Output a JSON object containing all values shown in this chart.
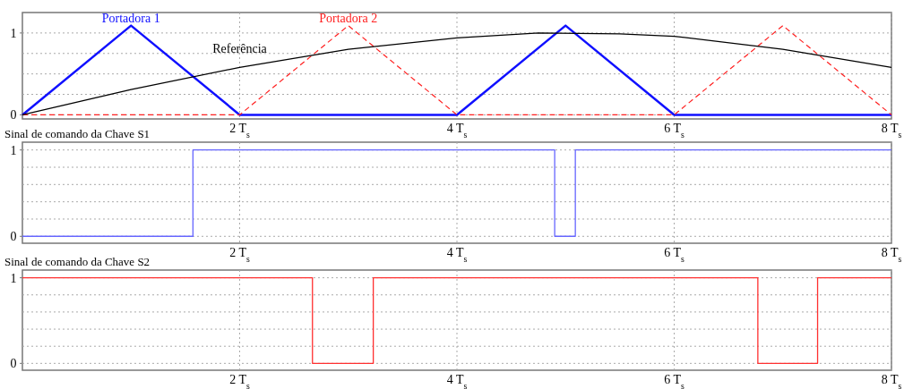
{
  "chart_data": [
    {
      "type": "line",
      "x": [
        0,
        1,
        2,
        3,
        4,
        4.75,
        5.5,
        6,
        7,
        8
      ],
      "xlim": [
        0,
        8
      ],
      "ylim": [
        -0.05,
        1.25
      ],
      "xticks": [
        {
          "value": 2,
          "label": "2 T$_{s}$"
        },
        {
          "value": 4,
          "label": "4 T$_{s}$"
        },
        {
          "value": 6,
          "label": "6 T$_{s}$"
        },
        {
          "value": 8,
          "label": "8 T$_{s}$"
        }
      ],
      "yticks": [
        {
          "value": 0,
          "label": "0"
        },
        {
          "value": 0.25,
          "label": null
        },
        {
          "value": 0.5,
          "label": null
        },
        {
          "value": 0.75,
          "label": null
        },
        {
          "value": 1,
          "label": "1"
        }
      ],
      "grid": true,
      "series": [
        {
          "name": "Portadora 1",
          "color": "#1010ff",
          "x": [
            0,
            1,
            2,
            4,
            5,
            6,
            8
          ],
          "values": [
            0,
            1.09,
            0,
            0,
            1.09,
            0,
            0
          ]
        },
        {
          "name": "Portadora 2",
          "color": "#ff2020",
          "line_style": "dashed",
          "x": [
            0,
            2,
            3,
            4,
            6,
            7,
            8
          ],
          "values": [
            0,
            0,
            1.09,
            0,
            0,
            1.09,
            0
          ]
        },
        {
          "name": "Referência",
          "color": "#000000",
          "values": [
            0,
            0.31,
            0.58,
            0.8,
            0.94,
            1.0,
            0.99,
            0.96,
            0.8,
            0.58
          ]
        }
      ]
    },
    {
      "type": "step",
      "title": "Sinal de comando da Chave S1",
      "xlim": [
        0,
        8
      ],
      "ylim": [
        -0.08,
        1.09
      ],
      "xticks": [
        {
          "value": 2,
          "label": "2 T$_{s}$"
        },
        {
          "value": 4,
          "label": "4 T$_{s}$"
        },
        {
          "value": 6,
          "label": "6 T$_{s}$"
        },
        {
          "value": 8,
          "label": "8 T$_{s}$"
        }
      ],
      "yticks": [
        {
          "value": 0,
          "label": "0"
        },
        {
          "value": 0.2,
          "label": null
        },
        {
          "value": 0.4,
          "label": null
        },
        {
          "value": 0.6,
          "label": null
        },
        {
          "value": 0.8,
          "label": null
        },
        {
          "value": 1,
          "label": "1"
        }
      ],
      "grid": true,
      "series": [
        {
          "color": "#6666ff",
          "x": [
            0,
            1.57,
            4.9,
            5.09,
            8
          ],
          "values": [
            0,
            1,
            0,
            1,
            1
          ]
        }
      ]
    },
    {
      "type": "step",
      "title": "Sinal de comando da Chave S2",
      "xlim": [
        0,
        8
      ],
      "ylim": [
        -0.08,
        1.09
      ],
      "xticks": [
        {
          "value": 2,
          "label": "2 T$_{s}$"
        },
        {
          "value": 4,
          "label": "4 T$_{s}$"
        },
        {
          "value": 6,
          "label": "6 T$_{s}$"
        },
        {
          "value": 8,
          "label": "8 T$_{s}$"
        }
      ],
      "yticks": [
        {
          "value": 0,
          "label": "0"
        },
        {
          "value": 0.2,
          "label": null
        },
        {
          "value": 0.4,
          "label": null
        },
        {
          "value": 0.6,
          "label": null
        },
        {
          "value": 0.8,
          "label": null
        },
        {
          "value": 1,
          "label": "1"
        }
      ],
      "grid": true,
      "series": [
        {
          "color": "#ff3030",
          "x": [
            0,
            2.67,
            3.23,
            6.77,
            7.32,
            8
          ],
          "values": [
            1,
            0,
            1,
            0,
            1,
            1
          ]
        }
      ]
    }
  ]
}
